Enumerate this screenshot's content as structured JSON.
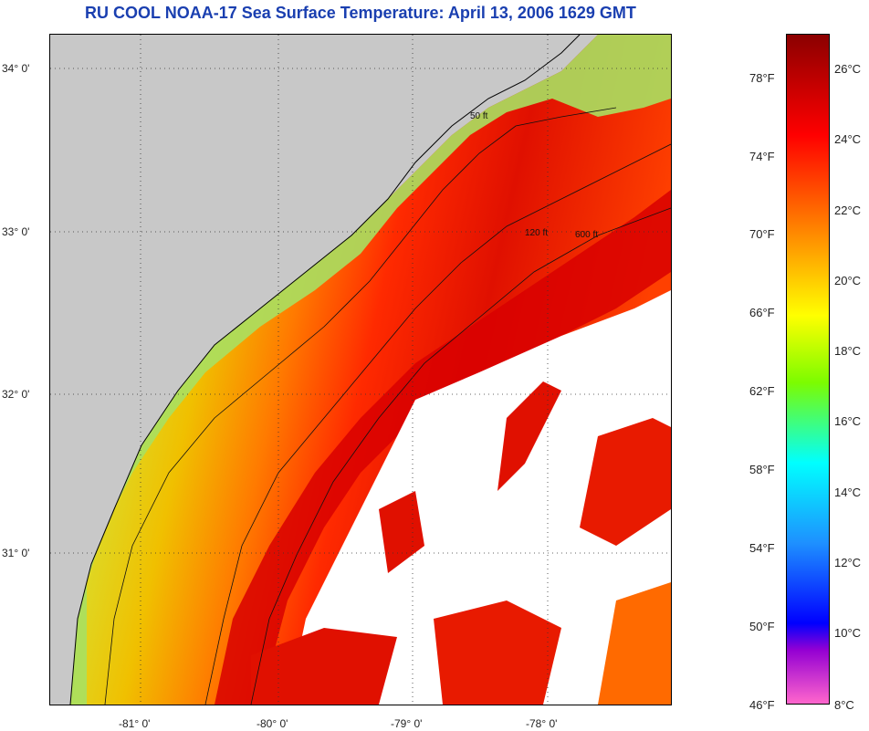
{
  "header": {
    "title": "RU COOL  NOAA-17  Sea Surface Temperature:  April 13, 2006 1629 GMT",
    "title_color": "#1a3fb0"
  },
  "map": {
    "lat_ticks": [
      {
        "label": "34° 0'"
      },
      {
        "label": "33° 0'"
      },
      {
        "label": "32° 0'"
      },
      {
        "label": "31° 0'"
      }
    ],
    "lon_ticks": [
      {
        "label": "-81° 0'"
      },
      {
        "label": "-80° 0'"
      },
      {
        "label": "-79° 0'"
      },
      {
        "label": "-78° 0'"
      }
    ],
    "land_color": "#c8c8c8",
    "cloud_color": "#ffffff",
    "contour_labels": [
      "50 ft",
      "120 ft",
      "600 ft"
    ]
  },
  "colorbar": {
    "fahrenheit_labels": [
      "78°F",
      "74°F",
      "70°F",
      "66°F",
      "62°F",
      "58°F",
      "54°F",
      "50°F",
      "46°F"
    ],
    "celsius_labels": [
      "26°C",
      "24°C",
      "22°C",
      "20°C",
      "18°C",
      "16°C",
      "14°C",
      "12°C",
      "10°C",
      "8°C"
    ],
    "gradient_stops": [
      "#8b0000",
      "#ff0000",
      "#ff8c00",
      "#ffff00",
      "#7cfc00",
      "#00ffff",
      "#1e90ff",
      "#0000ff",
      "#9400d3",
      "#ff66cc"
    ]
  }
}
